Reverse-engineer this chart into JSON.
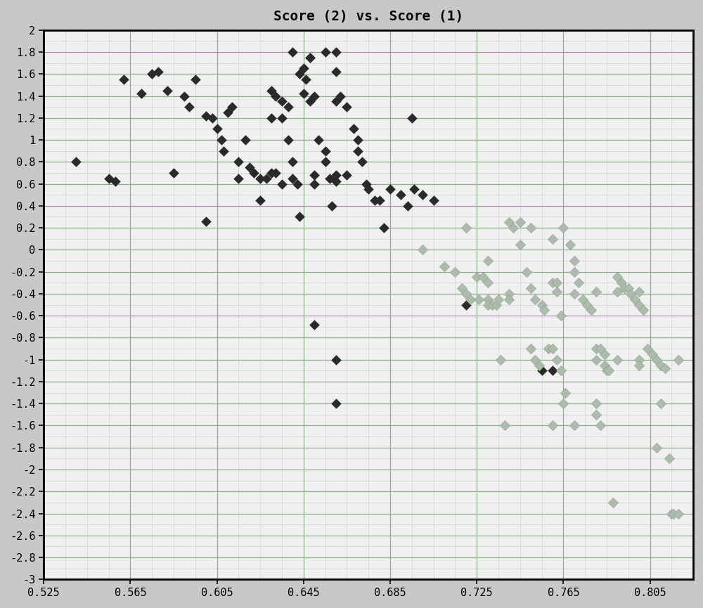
{
  "title": "Score (2) vs. Score (1)",
  "xlim": [
    0.525,
    0.825
  ],
  "ylim": [
    -3.0,
    2.0
  ],
  "xticks": [
    0.525,
    0.565,
    0.605,
    0.645,
    0.685,
    0.725,
    0.765,
    0.805
  ],
  "yticks": [
    2.0,
    1.8,
    1.6,
    1.4,
    1.2,
    1.0,
    0.8,
    0.6,
    0.4,
    0.2,
    0.0,
    -0.2,
    -0.4,
    -0.6,
    -0.8,
    -1.0,
    -1.2,
    -1.4,
    -1.6,
    -1.8,
    -2.0,
    -2.2,
    -2.4,
    -2.6,
    -2.8,
    -3.0
  ],
  "bg_color": "#f0f0f0",
  "fig_color": "#c8c8c8",
  "grid_color_green": "#8fbc8f",
  "grid_color_purple": "#b0a0c0",
  "dark_color": "#2a2a2a",
  "light_color": "#aabcaa",
  "dark_points": [
    [
      0.54,
      0.8
    ],
    [
      0.555,
      0.65
    ],
    [
      0.558,
      0.62
    ],
    [
      0.562,
      1.55
    ],
    [
      0.57,
      1.42
    ],
    [
      0.575,
      1.6
    ],
    [
      0.578,
      1.62
    ],
    [
      0.582,
      1.45
    ],
    [
      0.585,
      0.7
    ],
    [
      0.59,
      1.4
    ],
    [
      0.592,
      1.3
    ],
    [
      0.595,
      1.55
    ],
    [
      0.6,
      1.22
    ],
    [
      0.6,
      0.26
    ],
    [
      0.603,
      1.2
    ],
    [
      0.605,
      1.1
    ],
    [
      0.607,
      1.0
    ],
    [
      0.608,
      0.9
    ],
    [
      0.61,
      1.25
    ],
    [
      0.612,
      1.3
    ],
    [
      0.615,
      0.8
    ],
    [
      0.615,
      0.65
    ],
    [
      0.618,
      1.0
    ],
    [
      0.62,
      0.75
    ],
    [
      0.622,
      0.7
    ],
    [
      0.625,
      0.65
    ],
    [
      0.625,
      0.45
    ],
    [
      0.628,
      0.65
    ],
    [
      0.63,
      1.45
    ],
    [
      0.63,
      1.2
    ],
    [
      0.63,
      0.7
    ],
    [
      0.632,
      1.4
    ],
    [
      0.632,
      0.7
    ],
    [
      0.635,
      1.35
    ],
    [
      0.635,
      1.2
    ],
    [
      0.635,
      0.6
    ],
    [
      0.638,
      1.3
    ],
    [
      0.638,
      1.0
    ],
    [
      0.64,
      1.8
    ],
    [
      0.64,
      0.8
    ],
    [
      0.64,
      0.65
    ],
    [
      0.642,
      0.6
    ],
    [
      0.643,
      1.6
    ],
    [
      0.643,
      0.3
    ],
    [
      0.645,
      1.65
    ],
    [
      0.645,
      1.42
    ],
    [
      0.646,
      1.55
    ],
    [
      0.648,
      1.75
    ],
    [
      0.648,
      1.35
    ],
    [
      0.65,
      1.4
    ],
    [
      0.65,
      0.68
    ],
    [
      0.65,
      0.6
    ],
    [
      0.652,
      1.0
    ],
    [
      0.655,
      1.8
    ],
    [
      0.655,
      0.9
    ],
    [
      0.655,
      0.8
    ],
    [
      0.657,
      0.65
    ],
    [
      0.658,
      0.4
    ],
    [
      0.66,
      1.8
    ],
    [
      0.66,
      1.62
    ],
    [
      0.66,
      1.35
    ],
    [
      0.66,
      0.68
    ],
    [
      0.66,
      0.62
    ],
    [
      0.662,
      1.4
    ],
    [
      0.665,
      1.3
    ],
    [
      0.665,
      0.68
    ],
    [
      0.668,
      1.1
    ],
    [
      0.67,
      1.0
    ],
    [
      0.67,
      0.9
    ],
    [
      0.672,
      0.8
    ],
    [
      0.674,
      0.6
    ],
    [
      0.675,
      0.55
    ],
    [
      0.678,
      0.45
    ],
    [
      0.68,
      0.45
    ],
    [
      0.682,
      0.2
    ],
    [
      0.685,
      0.55
    ],
    [
      0.69,
      0.5
    ],
    [
      0.693,
      0.4
    ],
    [
      0.695,
      1.2
    ],
    [
      0.696,
      0.55
    ],
    [
      0.7,
      0.5
    ],
    [
      0.705,
      0.45
    ],
    [
      0.648,
      1.75
    ],
    [
      0.65,
      -0.68
    ],
    [
      0.66,
      -1.0
    ],
    [
      0.66,
      -1.4
    ],
    [
      0.72,
      -0.5
    ],
    [
      0.755,
      -1.1
    ],
    [
      0.76,
      -1.1
    ]
  ],
  "light_points": [
    [
      0.7,
      0.0
    ],
    [
      0.71,
      -0.15
    ],
    [
      0.715,
      -0.2
    ],
    [
      0.718,
      -0.35
    ],
    [
      0.72,
      0.2
    ],
    [
      0.72,
      -0.4
    ],
    [
      0.722,
      -0.45
    ],
    [
      0.725,
      -0.25
    ],
    [
      0.726,
      -0.45
    ],
    [
      0.728,
      -0.25
    ],
    [
      0.73,
      -0.1
    ],
    [
      0.73,
      -0.3
    ],
    [
      0.73,
      -0.45
    ],
    [
      0.73,
      -0.5
    ],
    [
      0.732,
      -0.5
    ],
    [
      0.734,
      -0.5
    ],
    [
      0.735,
      -0.45
    ],
    [
      0.736,
      -1.0
    ],
    [
      0.738,
      -1.6
    ],
    [
      0.74,
      0.25
    ],
    [
      0.74,
      -0.4
    ],
    [
      0.74,
      -0.45
    ],
    [
      0.742,
      0.2
    ],
    [
      0.745,
      0.25
    ],
    [
      0.745,
      0.05
    ],
    [
      0.748,
      -0.2
    ],
    [
      0.75,
      0.2
    ],
    [
      0.75,
      -0.35
    ],
    [
      0.75,
      -0.9
    ],
    [
      0.752,
      -0.45
    ],
    [
      0.752,
      -1.0
    ],
    [
      0.754,
      -1.05
    ],
    [
      0.755,
      -0.5
    ],
    [
      0.756,
      -0.55
    ],
    [
      0.758,
      -0.9
    ],
    [
      0.76,
      0.1
    ],
    [
      0.76,
      -0.3
    ],
    [
      0.76,
      -0.9
    ],
    [
      0.76,
      -1.6
    ],
    [
      0.762,
      -0.3
    ],
    [
      0.762,
      -0.38
    ],
    [
      0.762,
      -1.0
    ],
    [
      0.764,
      -0.6
    ],
    [
      0.764,
      -1.1
    ],
    [
      0.765,
      0.2
    ],
    [
      0.765,
      -1.4
    ],
    [
      0.766,
      -1.3
    ],
    [
      0.768,
      0.05
    ],
    [
      0.77,
      -0.1
    ],
    [
      0.77,
      -0.2
    ],
    [
      0.77,
      -0.4
    ],
    [
      0.77,
      -1.6
    ],
    [
      0.772,
      -0.3
    ],
    [
      0.774,
      -0.45
    ],
    [
      0.776,
      -0.5
    ],
    [
      0.778,
      -0.55
    ],
    [
      0.78,
      -0.38
    ],
    [
      0.78,
      -0.9
    ],
    [
      0.78,
      -1.0
    ],
    [
      0.78,
      -1.4
    ],
    [
      0.78,
      -1.5
    ],
    [
      0.782,
      -0.9
    ],
    [
      0.782,
      -1.6
    ],
    [
      0.784,
      -0.95
    ],
    [
      0.784,
      -1.05
    ],
    [
      0.785,
      -1.1
    ],
    [
      0.786,
      -1.1
    ],
    [
      0.788,
      -2.3
    ],
    [
      0.79,
      -0.25
    ],
    [
      0.79,
      -0.38
    ],
    [
      0.79,
      -1.0
    ],
    [
      0.792,
      -0.3
    ],
    [
      0.793,
      -0.35
    ],
    [
      0.795,
      -0.35
    ],
    [
      0.796,
      -0.4
    ],
    [
      0.798,
      -0.45
    ],
    [
      0.8,
      -0.38
    ],
    [
      0.8,
      -0.5
    ],
    [
      0.8,
      -1.0
    ],
    [
      0.8,
      -1.05
    ],
    [
      0.802,
      -0.55
    ],
    [
      0.804,
      -0.9
    ],
    [
      0.806,
      -0.95
    ],
    [
      0.808,
      -1.0
    ],
    [
      0.808,
      -1.8
    ],
    [
      0.81,
      -1.05
    ],
    [
      0.81,
      -1.4
    ],
    [
      0.812,
      -1.08
    ],
    [
      0.814,
      -1.9
    ],
    [
      0.815,
      -2.4
    ],
    [
      0.816,
      -2.4
    ],
    [
      0.818,
      -2.4
    ],
    [
      0.818,
      -1.0
    ]
  ]
}
